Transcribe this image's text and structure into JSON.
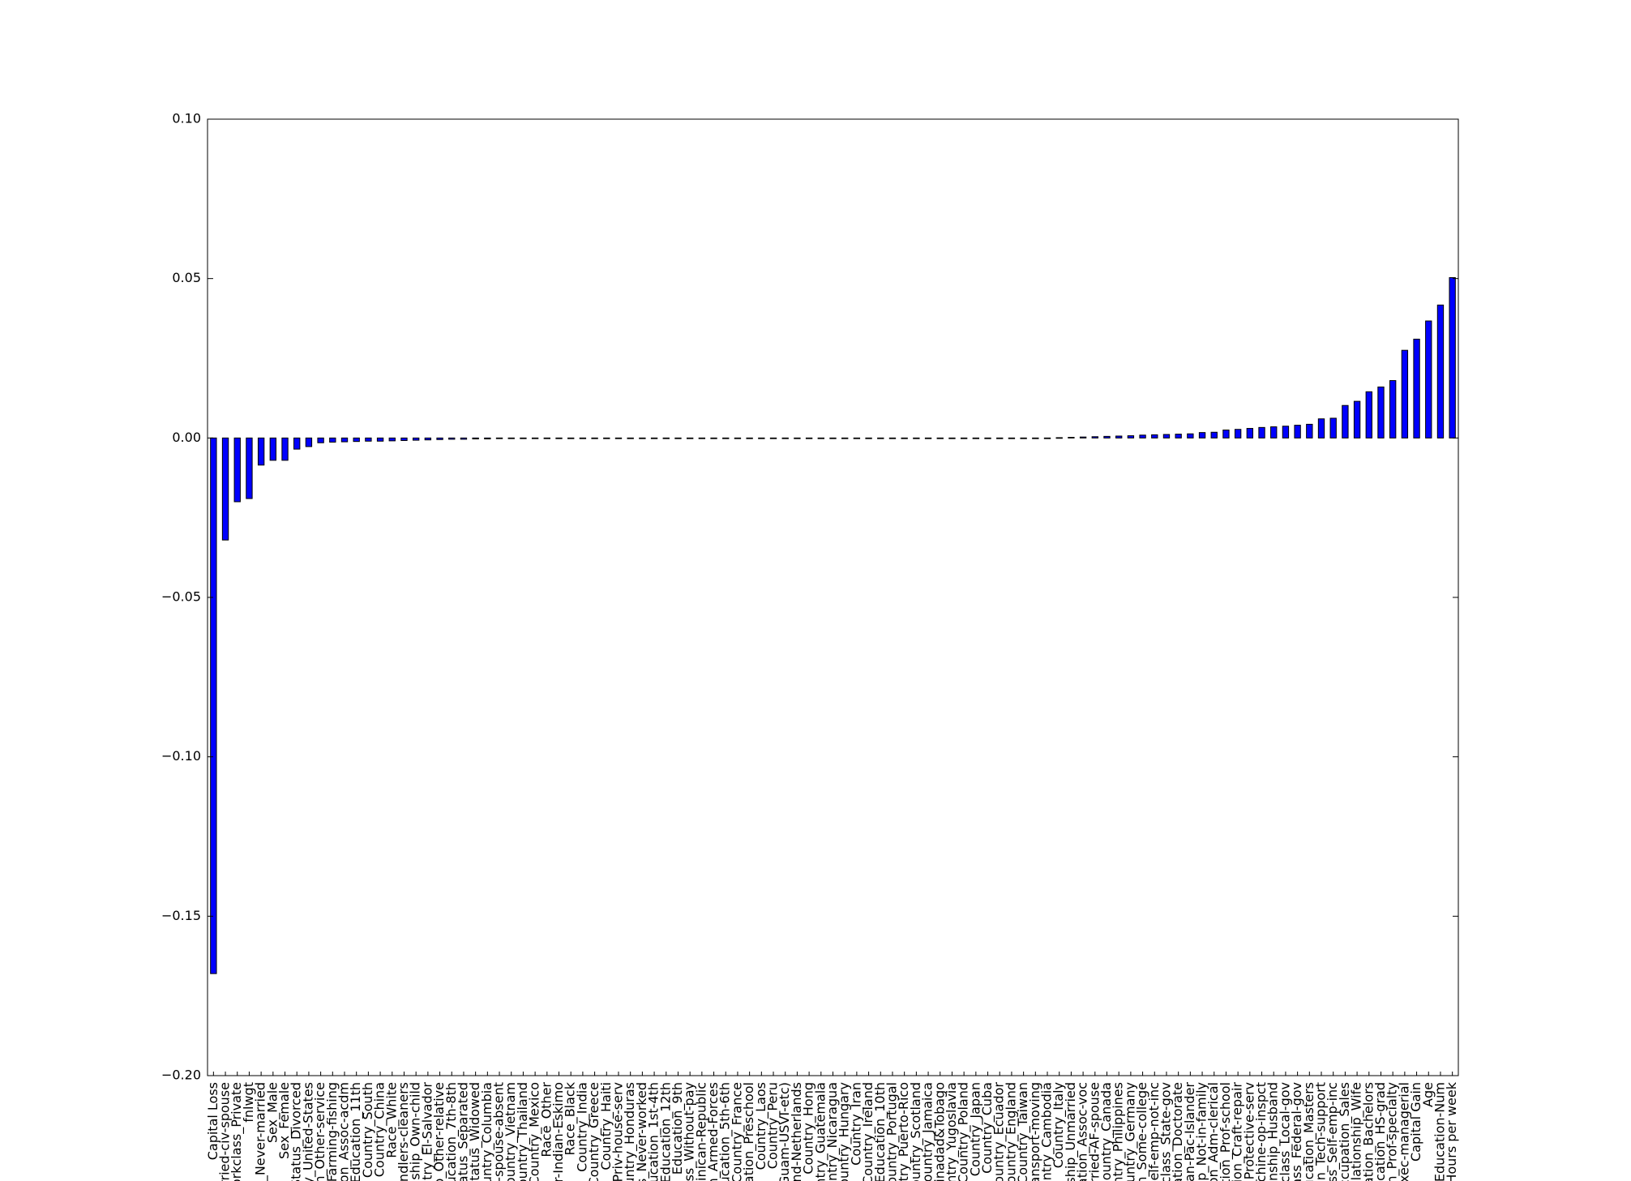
{
  "chart_data": {
    "type": "bar",
    "categories": [
      "Capital Loss",
      "arried-civ-spouse",
      "orkclass_Private",
      "fnlwgt",
      "s_Never-married",
      "Sex_Male",
      "Sex_Female",
      "Status_Divorced",
      "y_United-States",
      "on_Other-service",
      "_Farming-fishing",
      "tion_Assoc-acdm",
      "Education_11th",
      "Country_South",
      "Country_China",
      "Race_White",
      "andlers-cleaners",
      "nship_Own-child",
      "ntry_El-Salvador",
      "p_Other-relative",
      "ducation_7th-8th",
      "Status_Separated",
      "Status_Widowed",
      "ountry_Columbia",
      "d-spouse-absent",
      "Country_Vietnam",
      "Country_Thailand",
      "Country_Mexico",
      "Race_Other",
      "er-Indian-Eskimo",
      "Race_Black",
      "Country_India",
      "Country_Greece",
      "Country_Haiti",
      "_Priv-house-serv",
      "ountry_Honduras",
      "s_Never-worked",
      "ducation_1st-4th",
      "Education_12th",
      "Education_9th",
      "ass_Without-pay",
      "minican-Republic",
      "n_Armed-Forces",
      "ducation_5th-6th",
      "Country_France",
      "cation_Preschool",
      "Country_Laos",
      "Country_Peru",
      "(Guam-USVI-etc)",
      "and-Netherlands",
      "Country_Hong",
      "ountry_Guatemala",
      "ountry_Nicaragua",
      "Country_Hungary",
      "Country_Iran",
      "Country_Ireland",
      "Education_10th",
      "Country_Portugal",
      "ntry_Puerto-Rico",
      "Country_Scotland",
      "Country_Jamaica",
      "Trinadad&Tobago",
      "untry_Yugoslavia",
      "Country_Poland",
      "Country_Japan",
      "Country_Cuba",
      "Country_Ecuador",
      "Country_England",
      "Country_Taiwan",
      "Transport-moving",
      "ountry_Cambodia",
      "Country_Italy",
      "nship_Unmarried",
      "cation_Assoc-voc",
      "arried-AF-spouse",
      "Country_Canada",
      "ountry_Philippines",
      "ountry_Germany",
      "on_Some-college",
      "Self-emp-not-inc",
      "kclass_State-gov",
      "cation_Doctorate",
      "sian-Pac-Islander",
      "hip_Not-in-family",
      "ion_Adm-clerical",
      "ation_Prof-school",
      "tion_Craft-repair",
      "n_Protective-serv",
      "achine-op-inspct",
      "onship_Husband",
      "kclass_Local-gov",
      "lass_Federal-gov",
      "ducation_Masters",
      "ion_Tech-support",
      "ass_Self-emp-inc",
      "Occupation_Sales",
      "Relationship_Wife",
      "cation_Bachelors",
      "ucation_HS-grad",
      "n_Prof-specialty",
      "Exec-managerial",
      "Capital Gain",
      "Age",
      "Education-Num",
      "Hours per week"
    ],
    "values": [
      -0.168,
      -0.032,
      -0.02,
      -0.019,
      -0.0085,
      -0.007,
      -0.007,
      -0.0035,
      -0.0027,
      -0.0015,
      -0.0013,
      -0.0012,
      -0.0011,
      -0.001,
      -0.001,
      -0.0009,
      -0.0008,
      -0.0007,
      -0.0006,
      -0.0005,
      -0.0004,
      -0.0004,
      -0.0003,
      -0.0003,
      -0.0002,
      -0.0002,
      -0.0001,
      0,
      0,
      0,
      0,
      0,
      0,
      0,
      0,
      0,
      0,
      0,
      0,
      0,
      0,
      0,
      0,
      0,
      0,
      0,
      0,
      0,
      0,
      0,
      0,
      0,
      0,
      0,
      0,
      0,
      0,
      0,
      0,
      0,
      0,
      0,
      0,
      0,
      0,
      0,
      0,
      0,
      0,
      0,
      0,
      0.0001,
      0.0002,
      0.0003,
      0.0004,
      0.0005,
      0.0006,
      0.0007,
      0.0009,
      0.001,
      0.0011,
      0.0012,
      0.0013,
      0.0017,
      0.0018,
      0.0025,
      0.0027,
      0.003,
      0.0033,
      0.0035,
      0.0037,
      0.004,
      0.0043,
      0.006,
      0.0062,
      0.0102,
      0.0115,
      0.0145,
      0.016,
      0.018,
      0.0275,
      0.031,
      0.0367,
      0.0417,
      0.0503
    ],
    "color": "#0000ff",
    "ylim": [
      -0.2,
      0.1
    ],
    "yticks": [
      {
        "value": -0.2,
        "label": "−0.20"
      },
      {
        "value": -0.15,
        "label": "−0.15"
      },
      {
        "value": -0.1,
        "label": "−0.10"
      },
      {
        "value": -0.05,
        "label": "−0.05"
      },
      {
        "value": 0,
        "label": "0.00"
      },
      0.05,
      {
        "value": 0.1,
        "label": "0.10"
      }
    ],
    "grid": false
  }
}
